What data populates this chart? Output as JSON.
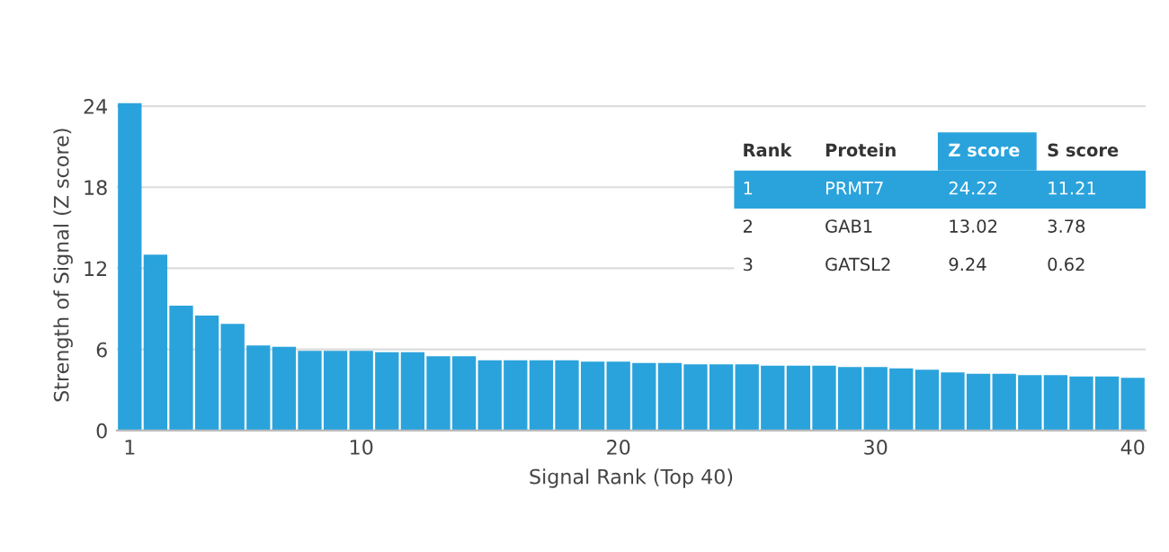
{
  "chart_data": {
    "type": "bar",
    "xlabel": "Signal Rank (Top 40)",
    "ylabel": "Strength of Signal (Z score)",
    "x": [
      1,
      2,
      3,
      4,
      5,
      6,
      7,
      8,
      9,
      10,
      11,
      12,
      13,
      14,
      15,
      16,
      17,
      18,
      19,
      20,
      21,
      22,
      23,
      24,
      25,
      26,
      27,
      28,
      29,
      30,
      31,
      32,
      33,
      34,
      35,
      36,
      37,
      38,
      39,
      40
    ],
    "values": [
      24.22,
      13.02,
      9.24,
      8.5,
      7.9,
      6.3,
      6.2,
      5.9,
      5.9,
      5.9,
      5.8,
      5.8,
      5.5,
      5.5,
      5.2,
      5.2,
      5.2,
      5.2,
      5.1,
      5.1,
      5.0,
      5.0,
      4.9,
      4.9,
      4.9,
      4.8,
      4.8,
      4.8,
      4.7,
      4.7,
      4.6,
      4.5,
      4.3,
      4.2,
      4.2,
      4.1,
      4.1,
      4.0,
      4.0,
      3.9
    ],
    "color": "#2aa3dc",
    "xlim": [
      0.5,
      40.5
    ],
    "xticks": [
      1,
      10,
      20,
      30,
      40
    ],
    "ylim": [
      0,
      24.5
    ],
    "yticks": [
      0,
      6,
      12,
      18,
      24
    ],
    "grid": "y",
    "annotations": [
      "Rank",
      "Protein",
      "Z score",
      "S score",
      "1",
      "PRMT7",
      "24.22",
      "11.21",
      "2",
      "GAB1",
      "13.02",
      "3.78",
      "3",
      "GATSL2",
      "9.24",
      "0.62"
    ]
  }
}
